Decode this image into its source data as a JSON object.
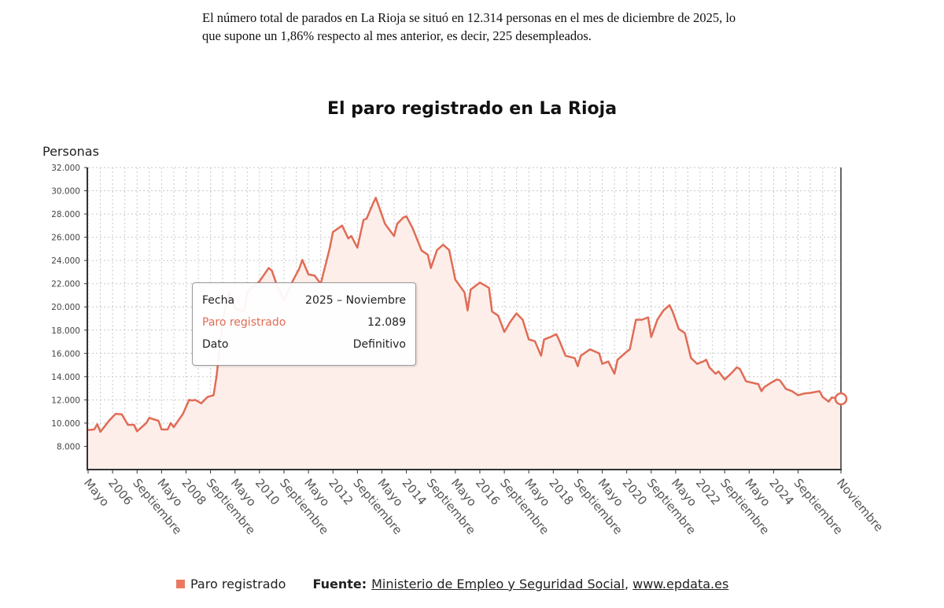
{
  "intro_text": "El número total de parados en La Rioja se situó en 12.314 personas en el mes de diciembre de 2025, lo que supone un 1,86% respecto al mes anterior, es decir, 225 desempleados.",
  "tooltip": {
    "fecha_label": "Fecha",
    "fecha_value": "2025 – Noviembre",
    "series_label": "Paro registrado",
    "series_value": "12.089",
    "dato_label": "Dato",
    "dato_value": "Definitivo"
  },
  "legend": {
    "series": "Paro registrado"
  },
  "source": {
    "label": "Fuente:",
    "link1": "Ministerio de Empleo y Seguridad Social",
    "separator": ",",
    "link2": "www.epdata.es"
  },
  "colors": {
    "series": "#e06c55",
    "fill": "#fdeeea",
    "legend_swatch": "#ea7a5f"
  },
  "chart_data": {
    "type": "area",
    "title": "El paro registrado en La Rioja",
    "ylabel": "Personas",
    "xlabel": "",
    "ylim": [
      6000,
      32000
    ],
    "yticks": [
      "8.000",
      "10.000",
      "12.000",
      "14.000",
      "16.000",
      "18.000",
      "20.000",
      "22.000",
      "24.000",
      "26.000",
      "28.000",
      "30.000",
      "32.000"
    ],
    "ytick_values": [
      8000,
      10000,
      12000,
      14000,
      16000,
      18000,
      20000,
      22000,
      24000,
      26000,
      28000,
      30000,
      32000
    ],
    "xlim": [
      "2005-05",
      "2025-11"
    ],
    "xticks": [
      {
        "date": "2005-05",
        "label": "Mayo"
      },
      {
        "date": "2006-01",
        "label": "2006"
      },
      {
        "date": "2006-09",
        "label": "Septiembre"
      },
      {
        "date": "2007-05",
        "label": "Mayo"
      },
      {
        "date": "2008-01",
        "label": "2008"
      },
      {
        "date": "2008-09",
        "label": "Septiembre"
      },
      {
        "date": "2009-05",
        "label": "Mayo"
      },
      {
        "date": "2010-01",
        "label": "2010"
      },
      {
        "date": "2010-09",
        "label": "Septiembre"
      },
      {
        "date": "2011-05",
        "label": "Mayo"
      },
      {
        "date": "2012-01",
        "label": "2012"
      },
      {
        "date": "2012-09",
        "label": "Septiembre"
      },
      {
        "date": "2013-05",
        "label": "Mayo"
      },
      {
        "date": "2014-01",
        "label": "2014"
      },
      {
        "date": "2014-09",
        "label": "Septiembre"
      },
      {
        "date": "2015-05",
        "label": "Mayo"
      },
      {
        "date": "2016-01",
        "label": "2016"
      },
      {
        "date": "2016-09",
        "label": "Septiembre"
      },
      {
        "date": "2017-05",
        "label": "Mayo"
      },
      {
        "date": "2018-01",
        "label": "2018"
      },
      {
        "date": "2018-09",
        "label": "Septiembre"
      },
      {
        "date": "2019-05",
        "label": "Mayo"
      },
      {
        "date": "2020-01",
        "label": "2020"
      },
      {
        "date": "2020-09",
        "label": "Septiembre"
      },
      {
        "date": "2021-05",
        "label": "Mayo"
      },
      {
        "date": "2022-01",
        "label": "2022"
      },
      {
        "date": "2022-09",
        "label": "Septiembre"
      },
      {
        "date": "2023-05",
        "label": "Mayo"
      },
      {
        "date": "2024-01",
        "label": "2024"
      },
      {
        "date": "2024-09",
        "label": "Septiembre"
      },
      {
        "date": "2025-11",
        "label": "Noviembre"
      }
    ],
    "grid": true,
    "legend_position": "bottom",
    "highlighted_point": {
      "date": "2025-11",
      "value": 12089
    },
    "series": [
      {
        "name": "Paro registrado",
        "points": [
          [
            "2005-05",
            9400
          ],
          [
            "2005-07",
            9450
          ],
          [
            "2005-08",
            9900
          ],
          [
            "2005-09",
            9250
          ],
          [
            "2005-12",
            10250
          ],
          [
            "2006-02",
            10800
          ],
          [
            "2006-04",
            10750
          ],
          [
            "2006-06",
            9850
          ],
          [
            "2006-08",
            9850
          ],
          [
            "2006-09",
            9300
          ],
          [
            "2006-12",
            10000
          ],
          [
            "2007-01",
            10450
          ],
          [
            "2007-04",
            10200
          ],
          [
            "2007-05",
            9450
          ],
          [
            "2007-07",
            9450
          ],
          [
            "2007-08",
            10000
          ],
          [
            "2007-09",
            9650
          ],
          [
            "2007-12",
            10800
          ],
          [
            "2008-02",
            12000
          ],
          [
            "2008-03",
            11950
          ],
          [
            "2008-04",
            12000
          ],
          [
            "2008-06",
            11700
          ],
          [
            "2008-08",
            12250
          ],
          [
            "2008-10",
            12400
          ],
          [
            "2008-11",
            14100
          ],
          [
            "2009-01",
            18900
          ],
          [
            "2009-03",
            21300
          ],
          [
            "2009-05",
            19900
          ],
          [
            "2009-08",
            19600
          ],
          [
            "2009-09",
            21300
          ],
          [
            "2010-01",
            22200
          ],
          [
            "2010-04",
            23350
          ],
          [
            "2010-05",
            23150
          ],
          [
            "2010-07",
            21650
          ],
          [
            "2010-09",
            20600
          ],
          [
            "2010-12",
            22300
          ],
          [
            "2011-02",
            23300
          ],
          [
            "2011-03",
            24050
          ],
          [
            "2011-05",
            22800
          ],
          [
            "2011-07",
            22700
          ],
          [
            "2011-09",
            22000
          ],
          [
            "2011-10",
            23000
          ],
          [
            "2011-12",
            25100
          ],
          [
            "2012-01",
            26450
          ],
          [
            "2012-04",
            27000
          ],
          [
            "2012-06",
            25900
          ],
          [
            "2012-07",
            26100
          ],
          [
            "2012-09",
            25100
          ],
          [
            "2012-11",
            27500
          ],
          [
            "2012-12",
            27600
          ],
          [
            "2013-02",
            28850
          ],
          [
            "2013-03",
            29400
          ],
          [
            "2013-06",
            27150
          ],
          [
            "2013-07",
            26800
          ],
          [
            "2013-09",
            26100
          ],
          [
            "2013-10",
            27150
          ],
          [
            "2013-12",
            27700
          ],
          [
            "2014-01",
            27800
          ],
          [
            "2014-03",
            26800
          ],
          [
            "2014-06",
            24850
          ],
          [
            "2014-08",
            24500
          ],
          [
            "2014-09",
            23350
          ],
          [
            "2014-11",
            24900
          ],
          [
            "2015-01",
            25350
          ],
          [
            "2015-03",
            24900
          ],
          [
            "2015-05",
            22350
          ],
          [
            "2015-08",
            21250
          ],
          [
            "2015-09",
            19700
          ],
          [
            "2015-10",
            21500
          ],
          [
            "2016-01",
            22100
          ],
          [
            "2016-04",
            21650
          ],
          [
            "2016-05",
            19600
          ],
          [
            "2016-07",
            19250
          ],
          [
            "2016-09",
            17850
          ],
          [
            "2016-11",
            18750
          ],
          [
            "2017-01",
            19450
          ],
          [
            "2017-03",
            18900
          ],
          [
            "2017-05",
            17200
          ],
          [
            "2017-07",
            17050
          ],
          [
            "2017-09",
            15800
          ],
          [
            "2017-10",
            17200
          ],
          [
            "2017-12",
            17400
          ],
          [
            "2018-02",
            17650
          ],
          [
            "2018-03",
            17100
          ],
          [
            "2018-05",
            15800
          ],
          [
            "2018-08",
            15600
          ],
          [
            "2018-09",
            14900
          ],
          [
            "2018-10",
            15800
          ],
          [
            "2019-01",
            16350
          ],
          [
            "2019-04",
            16000
          ],
          [
            "2019-05",
            15100
          ],
          [
            "2019-07",
            15300
          ],
          [
            "2019-09",
            14250
          ],
          [
            "2019-10",
            15450
          ],
          [
            "2020-01",
            16150
          ],
          [
            "2020-02",
            16350
          ],
          [
            "2020-04",
            18900
          ],
          [
            "2020-06",
            18900
          ],
          [
            "2020-08",
            19100
          ],
          [
            "2020-09",
            17400
          ],
          [
            "2020-11",
            18900
          ],
          [
            "2021-01",
            19700
          ],
          [
            "2021-03",
            20150
          ],
          [
            "2021-04",
            19600
          ],
          [
            "2021-06",
            18100
          ],
          [
            "2021-08",
            17750
          ],
          [
            "2021-10",
            15600
          ],
          [
            "2021-12",
            15100
          ],
          [
            "2022-02",
            15300
          ],
          [
            "2022-03",
            15450
          ],
          [
            "2022-04",
            14800
          ],
          [
            "2022-06",
            14250
          ],
          [
            "2022-07",
            14450
          ],
          [
            "2022-09",
            13750
          ],
          [
            "2022-11",
            14250
          ],
          [
            "2023-01",
            14800
          ],
          [
            "2023-02",
            14650
          ],
          [
            "2023-04",
            13600
          ],
          [
            "2023-08",
            13350
          ],
          [
            "2023-09",
            12750
          ],
          [
            "2023-10",
            13100
          ],
          [
            "2023-12",
            13450
          ],
          [
            "2024-02",
            13750
          ],
          [
            "2024-03",
            13700
          ],
          [
            "2024-05",
            12950
          ],
          [
            "2024-07",
            12750
          ],
          [
            "2024-09",
            12400
          ],
          [
            "2024-11",
            12550
          ],
          [
            "2025-01",
            12600
          ],
          [
            "2025-04",
            12750
          ],
          [
            "2025-05",
            12250
          ],
          [
            "2025-07",
            11850
          ],
          [
            "2025-08",
            12200
          ],
          [
            "2025-11",
            12089
          ]
        ]
      }
    ]
  }
}
